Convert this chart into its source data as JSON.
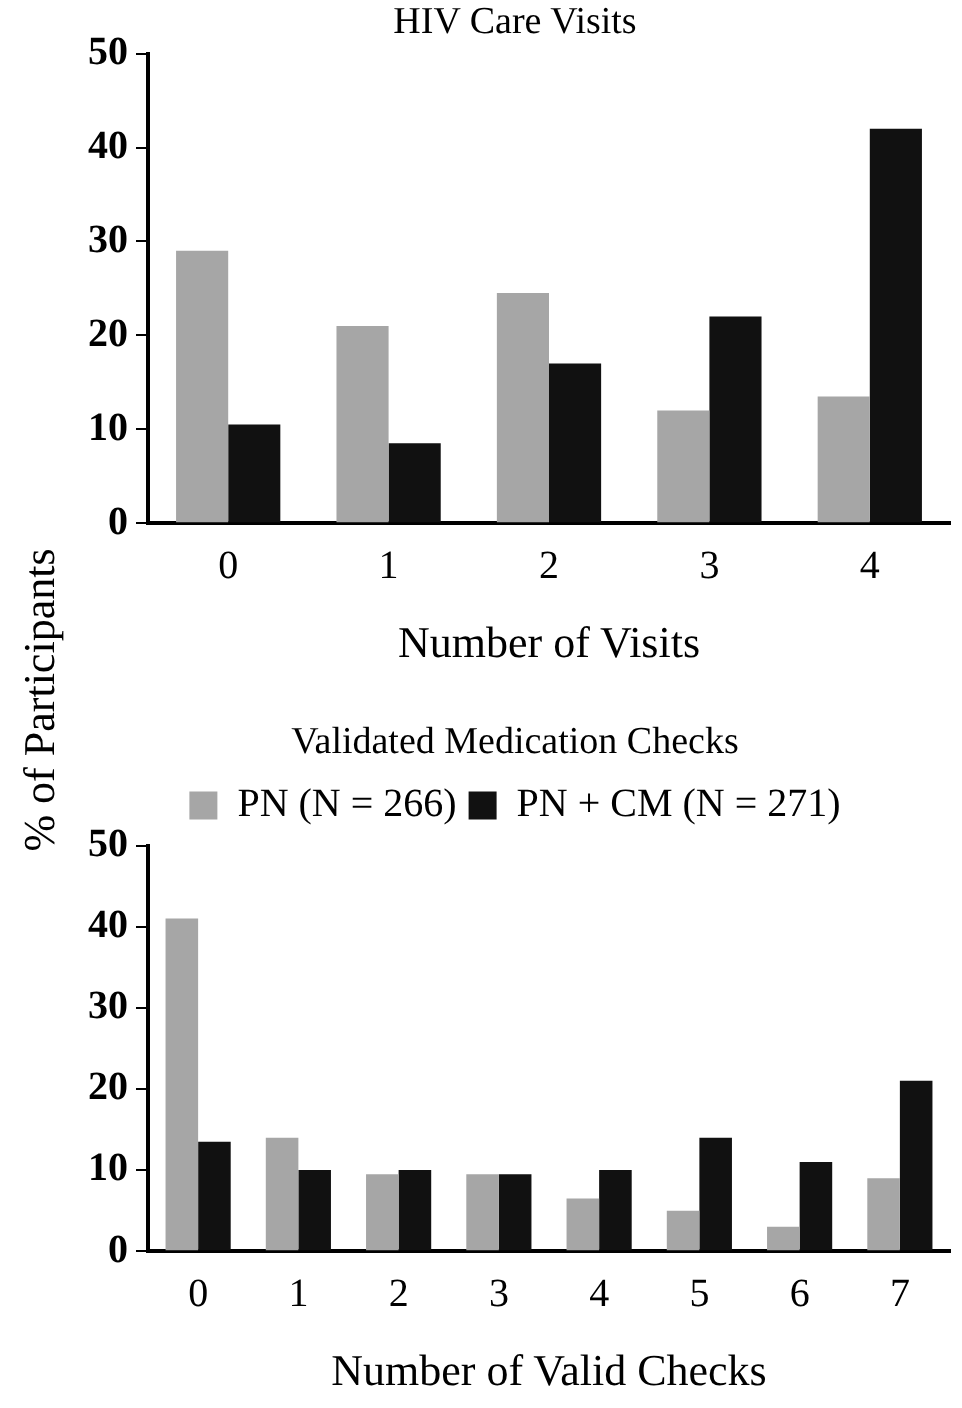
{
  "chart_data": [
    {
      "type": "bar",
      "title": "HIV Care Visits",
      "xlabel": "Number of Visits",
      "ylabel": "% of Participants",
      "categories": [
        "0",
        "1",
        "2",
        "3",
        "4"
      ],
      "series": [
        {
          "color": "#a6a6a6",
          "values": [
            29,
            21,
            24.5,
            12,
            13.5
          ]
        },
        {
          "color": "#111111",
          "values": [
            10.5,
            8.5,
            17,
            22,
            42
          ]
        }
      ],
      "ylim": [
        0,
        50
      ],
      "yticks": [
        0,
        10,
        20,
        30,
        40,
        50
      ],
      "grid": false,
      "legend": false
    },
    {
      "type": "bar",
      "title": "Validated Medication Checks",
      "xlabel": "Number of Valid Checks",
      "categories": [
        "0",
        "1",
        "2",
        "3",
        "4",
        "5",
        "6",
        "7"
      ],
      "series": [
        {
          "name": "PN (N = 266)",
          "color": "#a6a6a6",
          "values": [
            41,
            14,
            9.5,
            9.5,
            6.5,
            5,
            3,
            9
          ]
        },
        {
          "name": "PN + CM (N = 271)",
          "color": "#111111",
          "values": [
            13.5,
            10,
            10,
            9.5,
            10,
            14,
            11,
            21
          ]
        }
      ],
      "ylim": [
        0,
        50
      ],
      "yticks": [
        0,
        10,
        20,
        30,
        40,
        50
      ],
      "grid": false,
      "legend": "top"
    }
  ]
}
